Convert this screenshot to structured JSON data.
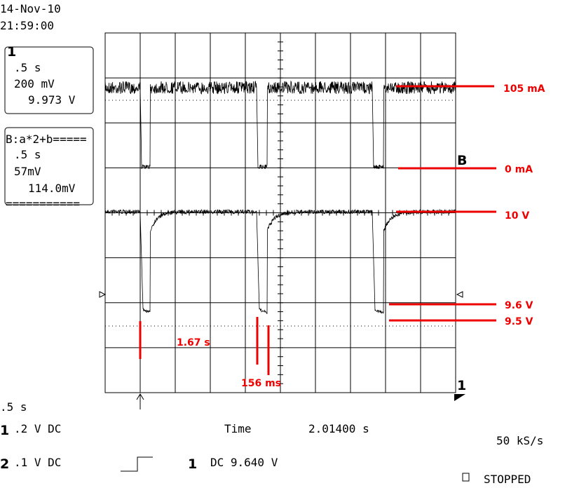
{
  "header": {
    "date": "14-Nov-10",
    "time": "21:59:00"
  },
  "channel1_box": {
    "label": "1",
    "timebase": ".5 s",
    "scale": "200 mV",
    "offset": "9.973 V"
  },
  "function_box": {
    "label": "B:a*2+b=====",
    "timebase": ".5 s",
    "scale": "57mV",
    "offset": "114.0mV",
    "footer": "==========="
  },
  "annotations": {
    "current_high": "105 mA",
    "trace_b": "B",
    "current_zero": "0 mA",
    "voltage_high": "10 V",
    "voltage_96": "9.6 V",
    "voltage_95": "9.5 V",
    "period": "1.67 s",
    "pulse": "156 ms"
  },
  "graticule_marker": "1",
  "footer": {
    "timebase": ".5  s",
    "ch1_label": "1",
    "ch1_setting": ".2  V  DC",
    "time_label": "Time",
    "time_value": "2.01400 s",
    "sample_rate": "50 kS/s",
    "ch2_label": "2",
    "ch2_setting": ".1  V  DC",
    "trigger_channel": "1",
    "trigger_setting": "DC 9.640 V",
    "status": "STOPPED"
  }
}
